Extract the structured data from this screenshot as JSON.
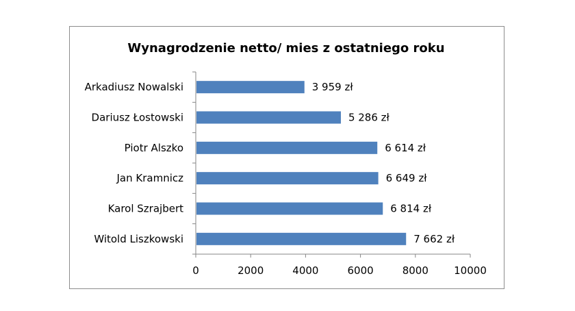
{
  "chart_data": {
    "type": "bar",
    "orientation": "horizontal",
    "title": "Wynagrodzenie netto/ mies z ostatniego roku",
    "categories": [
      "Arkadiusz Nowalski",
      "Dariusz Łostowski",
      "Piotr Alszko",
      "Jan Kramnicz",
      "Karol Szrajbert",
      "Witold Liszkowski"
    ],
    "values": [
      3959,
      5286,
      6614,
      6649,
      6814,
      7662
    ],
    "data_labels": [
      "3 959 zł",
      "5 286 zł",
      "6 614 zł",
      "6 649 zł",
      "6 814 zł",
      "7 662 zł"
    ],
    "xlim": [
      0,
      10000
    ],
    "xticks": [
      "0",
      "2000",
      "4000",
      "6000",
      "8000",
      "10000"
    ],
    "grid": false,
    "legend": "none",
    "bar_color": "#4f81bd"
  }
}
